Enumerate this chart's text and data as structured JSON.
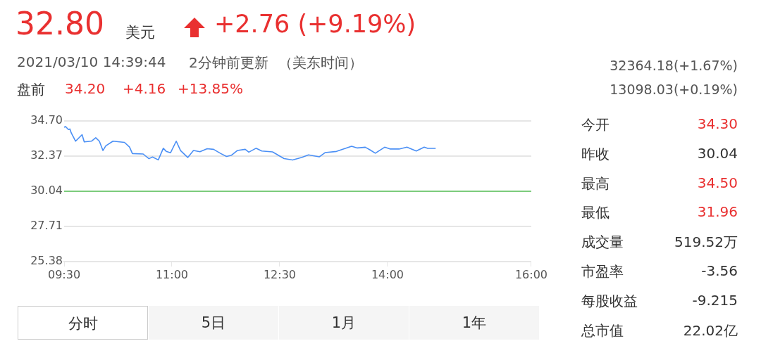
{
  "chart_data": [
    {
      "type": "other",
      "annotations": [
        "32.80",
        "美元",
        "+2.76 (+9.19%)",
        "2021/03/10 14:39:44",
        "2分钟前更新",
        "（美东时间）",
        "盘前",
        "34.20",
        "+4.16",
        "+13.85%",
        "32364.18(+1.67%)",
        "13098.03(+0.19%)"
      ]
    },
    {
      "type": "line",
      "x": [
        9.5,
        9.52,
        9.56,
        9.58,
        9.6,
        9.66,
        9.75,
        9.78,
        9.88,
        9.94,
        9.99,
        10.04,
        10.08,
        10.18,
        10.34,
        10.41,
        10.45,
        10.6,
        10.68,
        10.73,
        10.81,
        10.88,
        10.92,
        10.98,
        11.06,
        11.12,
        11.22,
        11.3,
        11.39,
        11.49,
        11.58,
        11.68,
        11.76,
        11.83,
        11.91,
        12.02,
        12.07,
        12.17,
        12.25,
        12.4,
        12.56,
        12.68,
        12.81,
        12.9,
        13.05,
        13.13,
        13.29,
        13.5,
        13.58,
        13.69,
        13.75,
        13.83,
        13.96,
        14.04,
        14.16,
        14.27,
        14.4,
        14.51,
        14.56,
        14.67
      ],
      "series": [
        {
          "color": "#4a8ff5",
          "values": [
            34.28,
            34.33,
            34.13,
            34.17,
            33.9,
            33.36,
            33.79,
            33.31,
            33.36,
            33.59,
            33.36,
            32.74,
            33.05,
            33.36,
            33.28,
            32.97,
            32.54,
            32.51,
            32.2,
            32.31,
            32.12,
            32.89,
            32.69,
            32.59,
            33.36,
            32.74,
            32.28,
            32.74,
            32.66,
            32.86,
            32.82,
            32.54,
            32.35,
            32.43,
            32.74,
            32.82,
            32.63,
            32.89,
            32.71,
            32.65,
            32.21,
            32.11,
            32.29,
            32.45,
            32.32,
            32.6,
            32.68,
            33.02,
            32.91,
            32.96,
            32.8,
            32.56,
            32.96,
            32.84,
            32.84,
            32.96,
            32.71,
            32.96,
            32.88,
            32.88
          ]
        }
      ],
      "xlim": [
        9.5,
        16
      ],
      "xticks": [
        {
          "value": 9.5,
          "label": "09:30"
        },
        {
          "value": 11,
          "label": "11:00"
        },
        {
          "value": 12.5,
          "label": "12:30"
        },
        {
          "value": 14,
          "label": "14:00"
        },
        {
          "value": 16,
          "label": "16:00"
        }
      ],
      "ylim": [
        25.38,
        34.7
      ],
      "yticks": [
        25.38,
        27.71,
        30.04,
        32.37,
        {
          "value": 34.7,
          "label": "34.70"
        }
      ],
      "ref_lines": [
        {
          "axis": "y",
          "value": 30.04,
          "color": "#7ccc7c"
        }
      ],
      "grid": "y",
      "legend": false,
      "marker": "none",
      "line_style": "solid"
    },
    {
      "type": "other",
      "annotations": [
        "分时",
        "5日",
        "1月",
        "1年"
      ]
    },
    {
      "type": "other",
      "annotations": [
        "今开",
        "34.30",
        "昨收",
        "30.04",
        "最高",
        "34.50",
        "最低",
        "31.96",
        "成交量",
        "519.52万",
        "市盈率",
        "-3.56",
        "每股收益",
        "-9.215",
        "总市值",
        "22.02亿"
      ]
    }
  ]
}
